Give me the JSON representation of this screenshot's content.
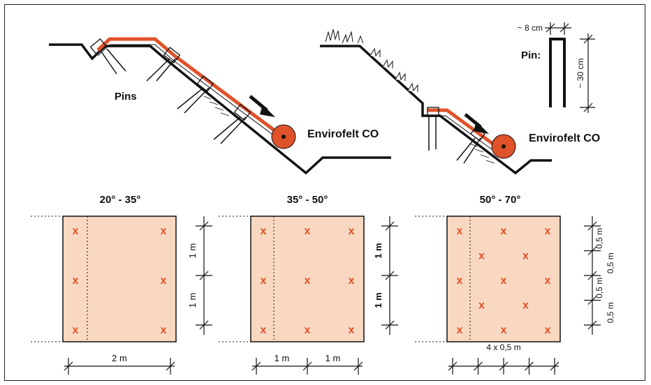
{
  "top_left": {
    "pins_label": "Pins",
    "product_label": "Envirofelt CO"
  },
  "top_right": {
    "product_label": "Envirofelt CO",
    "pin_label": "Pin:",
    "pin_width": "~ 8 cm",
    "pin_height": "~ 30 cm"
  },
  "panels": [
    {
      "title": "20° - 35°",
      "bottom_dims": [
        "2 m"
      ],
      "side_dims": [
        "1 m",
        "1 m"
      ],
      "marks": [
        [
          0,
          0
        ],
        [
          1,
          0
        ],
        [
          0,
          0.5
        ],
        [
          1,
          0.5
        ],
        [
          0,
          1
        ],
        [
          1,
          1
        ]
      ]
    },
    {
      "title": "35° - 50°",
      "bottom_dims": [
        "1 m",
        "1 m"
      ],
      "side_dims": [
        "1 m",
        "1 m"
      ],
      "marks": [
        [
          0,
          0
        ],
        [
          0.5,
          0
        ],
        [
          1,
          0
        ],
        [
          0,
          0.5
        ],
        [
          0.5,
          0.5
        ],
        [
          1,
          0.5
        ],
        [
          0,
          1
        ],
        [
          0.5,
          1
        ],
        [
          1,
          1
        ]
      ]
    },
    {
      "title": "50° - 70°",
      "bottom_dims": [
        "4 x 0,5 m"
      ],
      "side_dims": [
        "0,5 m",
        "0,5 m",
        "0,5 m",
        "0,5 m"
      ],
      "marks": [
        [
          0,
          0
        ],
        [
          0.5,
          0
        ],
        [
          1,
          0
        ],
        [
          0.25,
          0.25
        ],
        [
          0.75,
          0.25
        ],
        [
          0,
          0.5
        ],
        [
          0.5,
          0.5
        ],
        [
          1,
          0.5
        ],
        [
          0.25,
          0.75
        ],
        [
          0.75,
          0.75
        ],
        [
          0,
          1
        ],
        [
          0.5,
          1
        ],
        [
          1,
          1
        ]
      ]
    }
  ],
  "mark_symbol": "x",
  "colors": {
    "felt": "#e0522a",
    "panel_fill": "#f9d8c2",
    "ink": "#111111"
  }
}
